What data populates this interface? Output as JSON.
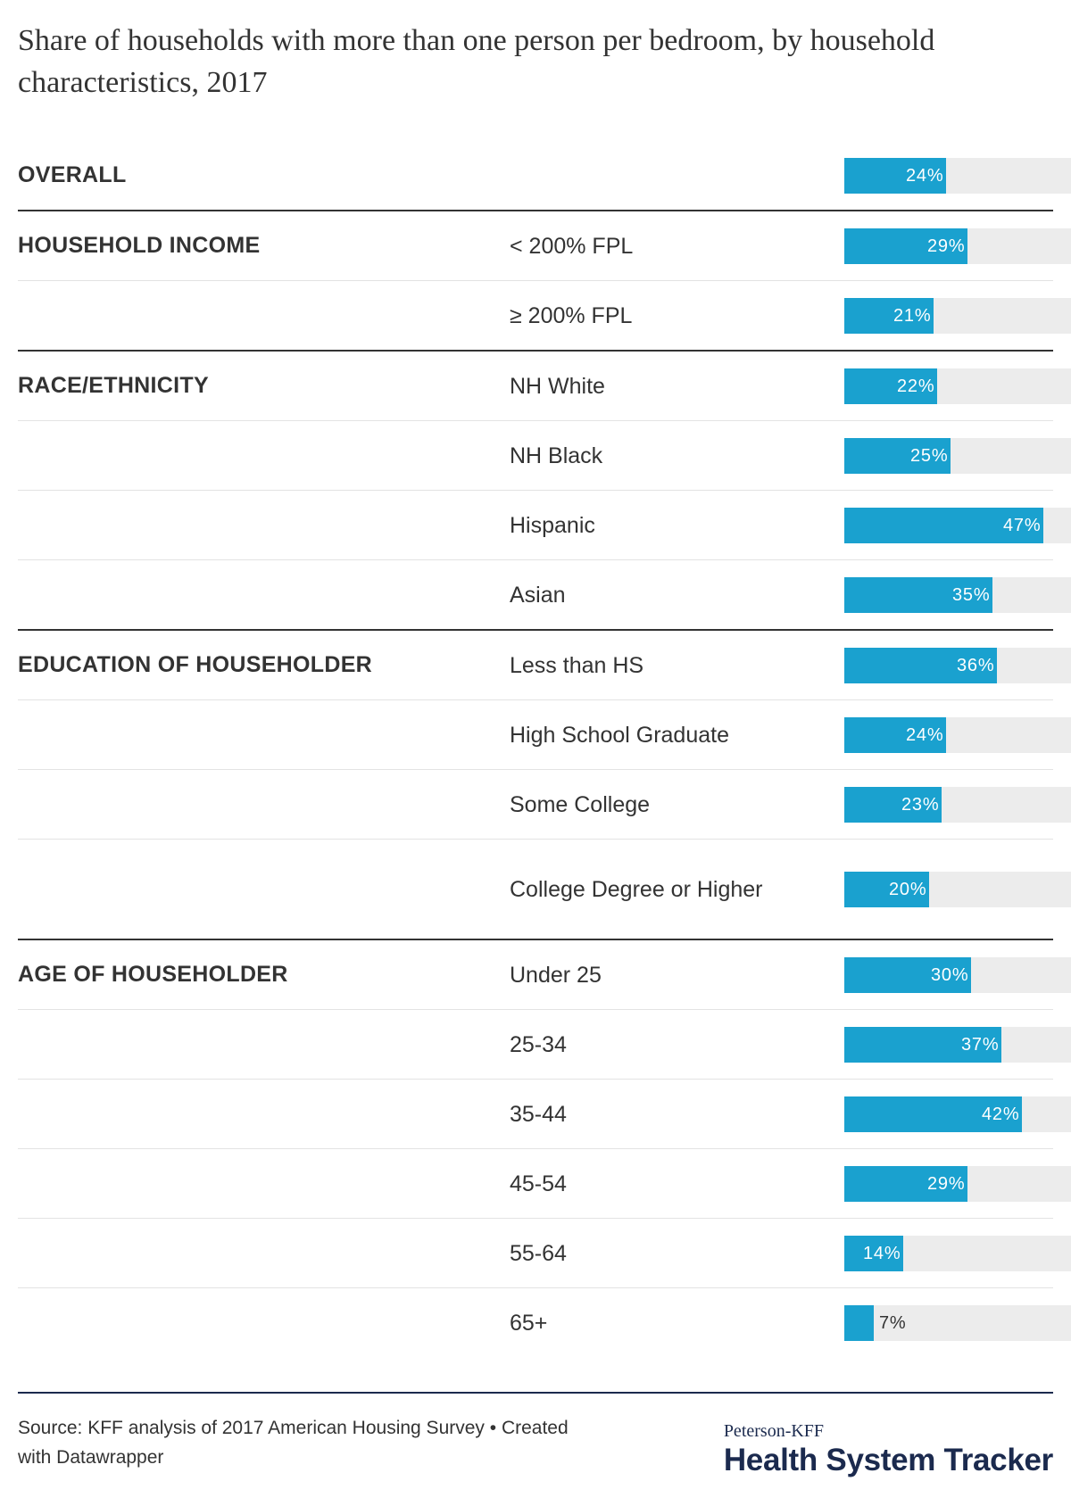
{
  "title": "Share of households with more than one person per bedroom, by household characteristics, 2017",
  "colors": {
    "bar": "#1aa1cf",
    "track": "#ececec",
    "rule": "#333333",
    "logo": "#1b2a4e"
  },
  "chart_data": {
    "type": "bar",
    "title": "Share of households with more than one person per bedroom, by household characteristics, 2017",
    "xlim": [
      0,
      50
    ],
    "groups": [
      {
        "name": "OVERALL",
        "rows": [
          {
            "label": "",
            "value": 24,
            "text": "24%"
          }
        ]
      },
      {
        "name": "HOUSEHOLD INCOME",
        "rows": [
          {
            "label": "< 200% FPL",
            "value": 29,
            "text": "29%"
          },
          {
            "label": "≥ 200% FPL",
            "value": 21,
            "text": "21%"
          }
        ]
      },
      {
        "name": "RACE/ETHNICITY",
        "rows": [
          {
            "label": "NH White",
            "value": 22,
            "text": "22%"
          },
          {
            "label": "NH Black",
            "value": 25,
            "text": "25%"
          },
          {
            "label": "Hispanic",
            "value": 47,
            "text": "47%"
          },
          {
            "label": "Asian",
            "value": 35,
            "text": "35%"
          }
        ]
      },
      {
        "name": "EDUCATION OF HOUSEHOLDER",
        "rows": [
          {
            "label": "Less than HS",
            "value": 36,
            "text": "36%"
          },
          {
            "label": "High School Graduate",
            "value": 24,
            "text": "24%"
          },
          {
            "label": "Some College",
            "value": 23,
            "text": "23%"
          },
          {
            "label": "College Degree or Higher",
            "value": 20,
            "text": "20%"
          }
        ]
      },
      {
        "name": "AGE OF HOUSEHOLDER",
        "rows": [
          {
            "label": "Under 25",
            "value": 30,
            "text": "30%"
          },
          {
            "label": "25-34",
            "value": 37,
            "text": "37%"
          },
          {
            "label": "35-44",
            "value": 42,
            "text": "42%"
          },
          {
            "label": "45-54",
            "value": 29,
            "text": "29%"
          },
          {
            "label": "55-64",
            "value": 14,
            "text": "14%"
          },
          {
            "label": "65+",
            "value": 7,
            "text": "7%"
          }
        ]
      }
    ]
  },
  "footer": {
    "source": "Source: KFF analysis of 2017 American Housing Survey • Created with Datawrapper",
    "logo_top": "Peterson-KFF",
    "logo_main": "Health System Tracker"
  }
}
